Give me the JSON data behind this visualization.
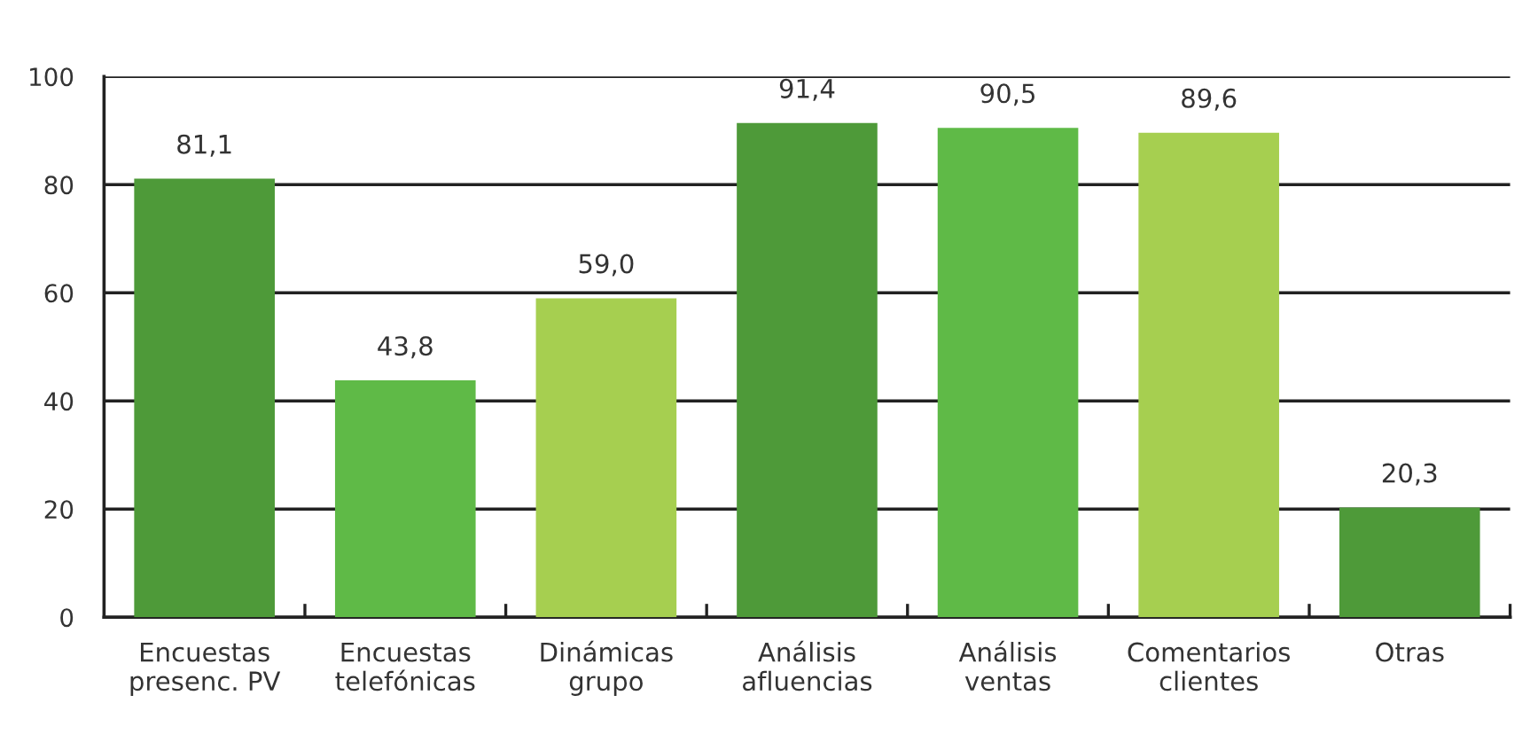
{
  "chart_data": {
    "type": "bar",
    "categories": [
      "Encuestas\npresenc. PV",
      "Encuestas\ntelefónicas",
      "Dinámicas\ngrupo",
      "Análisis\nafluencias",
      "Análisis\nventas",
      "Comentarios\nclientes",
      "Otras"
    ],
    "values": [
      81.1,
      43.8,
      59.0,
      91.4,
      90.5,
      89.6,
      20.3
    ],
    "value_labels": [
      "81,1",
      "43,8",
      "59,0",
      "91,4",
      "90,5",
      "89,6",
      "20,3"
    ],
    "colors": [
      "#4e9a39",
      "#5fba47",
      "#a6cf50",
      "#4e9a39",
      "#5fba47",
      "#a6cf50",
      "#4e9a39"
    ],
    "ylim": [
      0,
      100
    ],
    "yticks": [
      0,
      20,
      40,
      60,
      80,
      100
    ],
    "grid": "y",
    "legend": false
  }
}
